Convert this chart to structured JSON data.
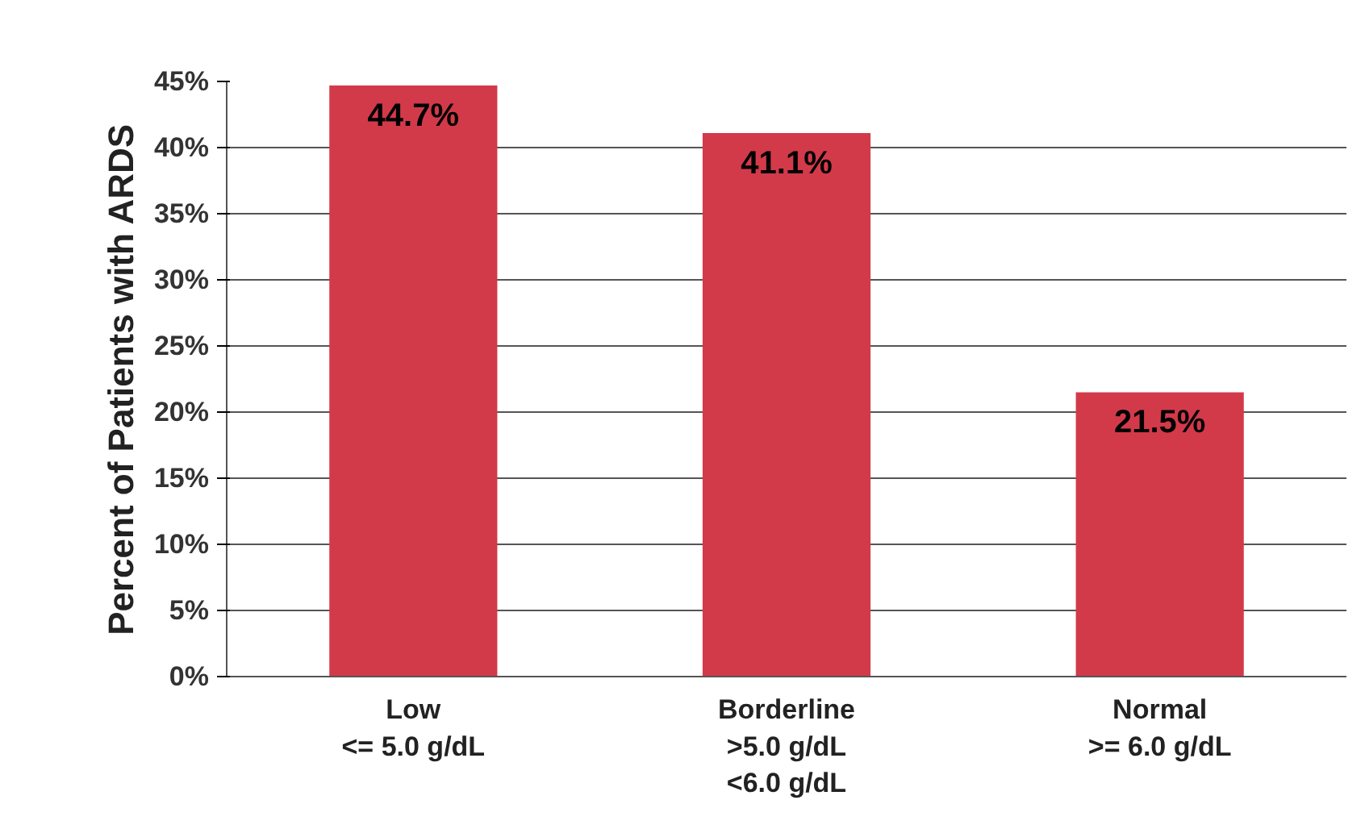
{
  "chart_data": {
    "type": "bar",
    "ylabel": "Percent of Patients with ARDS",
    "categories": [
      "Low\n<= 5.0 g/dL",
      "Borderline\n>5.0 g/dL\n<6.0 g/dL",
      "Normal\n>= 6.0 g/dL"
    ],
    "values": [
      44.7,
      41.1,
      21.5
    ],
    "color": "#d23a4a",
    "value_labels": [
      "44.7%",
      "41.1%",
      "21.5%"
    ],
    "ylim": [
      0,
      45
    ],
    "yticks": [
      {
        "value": 0,
        "label": "0%"
      },
      {
        "value": 5,
        "label": "5%"
      },
      {
        "value": 10,
        "label": "10%"
      },
      {
        "value": 15,
        "label": "15%"
      },
      {
        "value": 20,
        "label": "20%"
      },
      {
        "value": 25,
        "label": "25%"
      },
      {
        "value": 30,
        "label": "30%"
      },
      {
        "value": 35,
        "label": "35%"
      },
      {
        "value": 40,
        "label": "40%"
      },
      {
        "value": 45,
        "label": "45%"
      }
    ],
    "grid": "y"
  }
}
